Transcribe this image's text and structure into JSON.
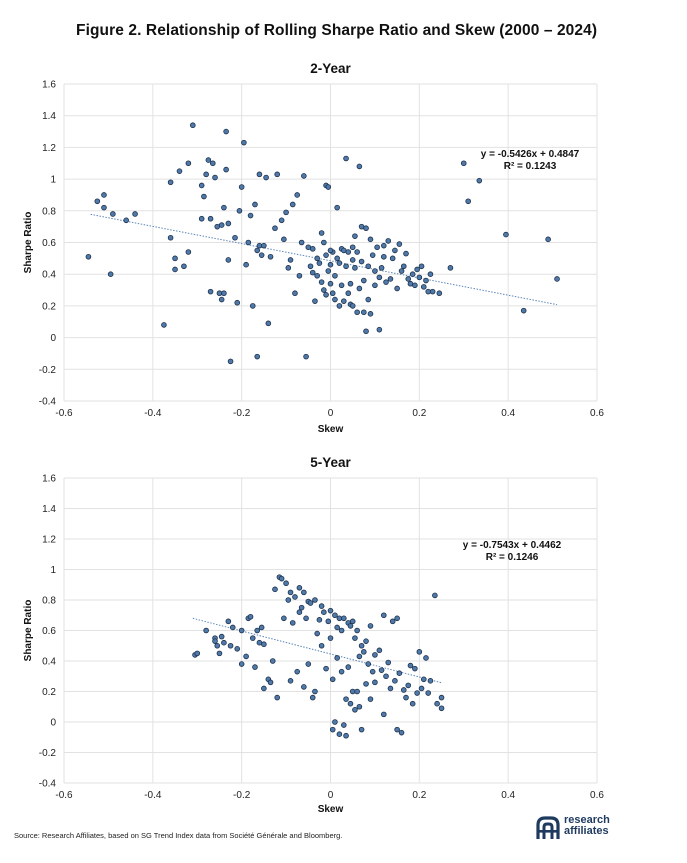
{
  "figure_title": "Figure 2. Relationship of Rolling Sharpe Ratio and Skew (2000 – 2024)",
  "source": "Source: Research Affiliates, based on SG Trend Index data from Société Générale and Bloomberg.",
  "logo": {
    "line1": "research",
    "line2": "affiliates",
    "mark": "research-affiliates-logo-mark"
  },
  "colors": {
    "point_fill": "#4f79a8",
    "point_stroke": "#1c2f4a",
    "trend": "#5b86b8",
    "grid": "#e2e2e2"
  },
  "chart_data": [
    {
      "type": "scatter",
      "title": "2-Year",
      "xlabel": "Skew",
      "ylabel": "Sharpe Ratio",
      "xlim": [
        -0.6,
        0.6
      ],
      "ylim": [
        -0.4,
        1.6
      ],
      "xticks": [
        "-0.6",
        "-0.4",
        "-0.2",
        "0",
        "0.2",
        "0.4",
        "0.6"
      ],
      "yticks": [
        "-0.4",
        "-0.2",
        "0",
        "0.2",
        "0.4",
        "0.6",
        "0.8",
        "1",
        "1.2",
        "1.4",
        "1.6"
      ],
      "grid": true,
      "trendline": {
        "slope": -0.5426,
        "intercept": 0.4847,
        "x_range": [
          -0.54,
          0.51
        ]
      },
      "equation": "y = -0.5426x + 0.4847",
      "r_squared": "R² = 0.1243",
      "points": [
        [
          -0.545,
          0.51
        ],
        [
          -0.525,
          0.86
        ],
        [
          -0.51,
          0.9
        ],
        [
          -0.51,
          0.82
        ],
        [
          -0.49,
          0.78
        ],
        [
          -0.495,
          0.4
        ],
        [
          -0.46,
          0.74
        ],
        [
          -0.44,
          0.78
        ],
        [
          -0.375,
          0.08
        ],
        [
          -0.36,
          0.98
        ],
        [
          -0.36,
          0.63
        ],
        [
          -0.35,
          0.5
        ],
        [
          -0.35,
          0.43
        ],
        [
          -0.34,
          1.05
        ],
        [
          -0.33,
          0.45
        ],
        [
          -0.32,
          1.1
        ],
        [
          -0.32,
          0.54
        ],
        [
          -0.31,
          1.34
        ],
        [
          -0.29,
          0.96
        ],
        [
          -0.29,
          0.75
        ],
        [
          -0.285,
          0.89
        ],
        [
          -0.28,
          1.03
        ],
        [
          -0.275,
          1.12
        ],
        [
          -0.27,
          0.75
        ],
        [
          -0.27,
          0.29
        ],
        [
          -0.265,
          1.1
        ],
        [
          -0.26,
          1.01
        ],
        [
          -0.255,
          0.7
        ],
        [
          -0.25,
          0.28
        ],
        [
          -0.245,
          0.71
        ],
        [
          -0.245,
          0.24
        ],
        [
          -0.24,
          0.28
        ],
        [
          -0.24,
          0.82
        ],
        [
          -0.235,
          1.3
        ],
        [
          -0.235,
          1.06
        ],
        [
          -0.23,
          0.49
        ],
        [
          -0.23,
          0.72
        ],
        [
          -0.225,
          -0.15
        ],
        [
          -0.215,
          0.63
        ],
        [
          -0.21,
          0.22
        ],
        [
          -0.205,
          0.8
        ],
        [
          -0.2,
          0.95
        ],
        [
          -0.195,
          1.23
        ],
        [
          -0.19,
          0.46
        ],
        [
          -0.185,
          0.6
        ],
        [
          -0.18,
          0.77
        ],
        [
          -0.175,
          0.2
        ],
        [
          -0.17,
          0.84
        ],
        [
          -0.165,
          0.55
        ],
        [
          -0.165,
          -0.12
        ],
        [
          -0.16,
          1.03
        ],
        [
          -0.16,
          0.58
        ],
        [
          -0.155,
          0.52
        ],
        [
          -0.15,
          0.58
        ],
        [
          -0.145,
          1.01
        ],
        [
          -0.14,
          0.09
        ],
        [
          -0.135,
          0.51
        ],
        [
          -0.125,
          0.69
        ],
        [
          -0.12,
          1.03
        ],
        [
          -0.11,
          0.74
        ],
        [
          -0.105,
          0.62
        ],
        [
          -0.1,
          0.79
        ],
        [
          -0.095,
          0.44
        ],
        [
          -0.09,
          0.49
        ],
        [
          -0.085,
          0.84
        ],
        [
          -0.08,
          0.28
        ],
        [
          -0.075,
          0.9
        ],
        [
          -0.07,
          0.39
        ],
        [
          -0.065,
          0.6
        ],
        [
          -0.06,
          1.02
        ],
        [
          -0.055,
          -0.12
        ],
        [
          -0.05,
          0.57
        ],
        [
          -0.045,
          0.45
        ],
        [
          -0.04,
          0.56
        ],
        [
          -0.04,
          0.41
        ],
        [
          -0.035,
          0.23
        ],
        [
          -0.03,
          0.5
        ],
        [
          -0.03,
          0.39
        ],
        [
          -0.025,
          0.47
        ],
        [
          -0.02,
          0.66
        ],
        [
          -0.02,
          0.35
        ],
        [
          -0.015,
          0.6
        ],
        [
          -0.015,
          0.3
        ],
        [
          -0.01,
          0.96
        ],
        [
          -0.01,
          0.52
        ],
        [
          -0.01,
          0.27
        ],
        [
          -0.005,
          0.95
        ],
        [
          -0.005,
          0.42
        ],
        [
          0.0,
          0.34
        ],
        [
          0.0,
          0.46
        ],
        [
          0.005,
          0.28
        ],
        [
          0.005,
          0.54
        ],
        [
          0.01,
          0.39
        ],
        [
          0.01,
          0.24
        ],
        [
          0.015,
          0.5
        ],
        [
          0.015,
          0.82
        ],
        [
          0.02,
          0.47
        ],
        [
          0.02,
          0.2
        ],
        [
          0.025,
          0.33
        ],
        [
          0.025,
          0.56
        ],
        [
          0.03,
          0.55
        ],
        [
          0.03,
          0.23
        ],
        [
          0.035,
          0.45
        ],
        [
          0.035,
          1.13
        ],
        [
          0.04,
          0.28
        ],
        [
          0.04,
          0.54
        ],
        [
          0.045,
          0.21
        ],
        [
          0.045,
          0.34
        ],
        [
          0.05,
          0.49
        ],
        [
          0.05,
          0.2
        ],
        [
          0.055,
          0.44
        ],
        [
          0.055,
          0.64
        ],
        [
          0.06,
          0.54
        ],
        [
          0.06,
          0.16
        ],
        [
          0.065,
          0.31
        ],
        [
          0.065,
          1.08
        ],
        [
          0.07,
          0.48
        ],
        [
          0.07,
          0.7
        ],
        [
          0.075,
          0.16
        ],
        [
          0.075,
          0.36
        ],
        [
          0.08,
          0.69
        ],
        [
          0.08,
          0.04
        ],
        [
          0.085,
          0.45
        ],
        [
          0.085,
          0.24
        ],
        [
          0.09,
          0.62
        ],
        [
          0.09,
          0.15
        ],
        [
          0.095,
          0.52
        ],
        [
          0.1,
          0.42
        ],
        [
          0.1,
          0.33
        ],
        [
          0.105,
          0.57
        ],
        [
          0.11,
          0.38
        ],
        [
          0.115,
          0.44
        ],
        [
          0.12,
          0.51
        ],
        [
          0.12,
          0.58
        ],
        [
          0.125,
          0.35
        ],
        [
          0.13,
          0.61
        ],
        [
          0.135,
          0.37
        ],
        [
          0.14,
          0.5
        ],
        [
          0.145,
          0.55
        ],
        [
          0.15,
          0.31
        ],
        [
          0.155,
          0.59
        ],
        [
          0.16,
          0.42
        ],
        [
          0.165,
          0.45
        ],
        [
          0.17,
          0.53
        ],
        [
          0.175,
          0.37
        ],
        [
          0.18,
          0.34
        ],
        [
          0.185,
          0.4
        ],
        [
          0.19,
          0.33
        ],
        [
          0.195,
          0.43
        ],
        [
          0.2,
          0.38
        ],
        [
          0.205,
          0.45
        ],
        [
          0.21,
          0.32
        ],
        [
          0.215,
          0.36
        ],
        [
          0.22,
          0.29
        ],
        [
          0.225,
          0.4
        ],
        [
          0.23,
          0.29
        ],
        [
          0.245,
          0.28
        ],
        [
          0.27,
          0.44
        ],
        [
          0.3,
          1.1
        ],
        [
          0.31,
          0.86
        ],
        [
          0.335,
          0.99
        ],
        [
          0.395,
          0.65
        ],
        [
          0.435,
          0.17
        ],
        [
          0.49,
          0.62
        ],
        [
          0.51,
          0.37
        ],
        [
          0.11,
          0.05
        ],
        [
          0.05,
          0.57
        ],
        [
          0.0,
          0.55
        ]
      ]
    },
    {
      "type": "scatter",
      "title": "5-Year",
      "xlabel": "Skew",
      "ylabel": "Sharpe Ratio",
      "xlim": [
        -0.6,
        0.6
      ],
      "ylim": [
        -0.4,
        1.6
      ],
      "xticks": [
        "-0.6",
        "-0.4",
        "-0.2",
        "0",
        "0.2",
        "0.4",
        "0.6"
      ],
      "yticks": [
        "-0.4",
        "-0.2",
        "0",
        "0.2",
        "0.4",
        "0.6",
        "0.8",
        "1",
        "1.2",
        "1.4",
        "1.6"
      ],
      "grid": true,
      "trendline": {
        "slope": -0.7543,
        "intercept": 0.4462,
        "x_range": [
          -0.31,
          0.25
        ]
      },
      "equation": "y = -0.7543x + 0.4462",
      "r_squared": "R² = 0.1246",
      "points": [
        [
          -0.305,
          0.44
        ],
        [
          -0.3,
          0.45
        ],
        [
          -0.28,
          0.6
        ],
        [
          -0.26,
          0.55
        ],
        [
          -0.255,
          0.5
        ],
        [
          -0.25,
          0.45
        ],
        [
          -0.245,
          0.56
        ],
        [
          -0.24,
          0.52
        ],
        [
          -0.23,
          0.66
        ],
        [
          -0.225,
          0.5
        ],
        [
          -0.22,
          0.62
        ],
        [
          -0.21,
          0.48
        ],
        [
          -0.2,
          0.6
        ],
        [
          -0.2,
          0.38
        ],
        [
          -0.19,
          0.43
        ],
        [
          -0.185,
          0.68
        ],
        [
          -0.18,
          0.69
        ],
        [
          -0.175,
          0.55
        ],
        [
          -0.17,
          0.36
        ],
        [
          -0.165,
          0.6
        ],
        [
          -0.16,
          0.52
        ],
        [
          -0.155,
          0.62
        ],
        [
          -0.15,
          0.51
        ],
        [
          -0.14,
          0.28
        ],
        [
          -0.135,
          0.26
        ],
        [
          -0.13,
          0.4
        ],
        [
          -0.125,
          0.87
        ],
        [
          -0.12,
          0.16
        ],
        [
          -0.115,
          0.95
        ],
        [
          -0.11,
          0.94
        ],
        [
          -0.105,
          0.68
        ],
        [
          -0.1,
          0.91
        ],
        [
          -0.095,
          0.8
        ],
        [
          -0.09,
          0.85
        ],
        [
          -0.09,
          0.27
        ],
        [
          -0.085,
          0.65
        ],
        [
          -0.08,
          0.82
        ],
        [
          -0.075,
          0.33
        ],
        [
          -0.07,
          0.88
        ],
        [
          -0.07,
          0.72
        ],
        [
          -0.065,
          0.75
        ],
        [
          -0.06,
          0.85
        ],
        [
          -0.06,
          0.23
        ],
        [
          -0.055,
          0.68
        ],
        [
          -0.05,
          0.79
        ],
        [
          -0.05,
          0.38
        ],
        [
          -0.045,
          0.78
        ],
        [
          -0.04,
          0.16
        ],
        [
          -0.035,
          0.8
        ],
        [
          -0.035,
          0.2
        ],
        [
          -0.03,
          0.58
        ],
        [
          -0.025,
          0.67
        ],
        [
          -0.02,
          0.5
        ],
        [
          -0.02,
          0.76
        ],
        [
          -0.015,
          0.72
        ],
        [
          -0.01,
          0.35
        ],
        [
          -0.005,
          0.66
        ],
        [
          0.0,
          0.73
        ],
        [
          0.0,
          0.55
        ],
        [
          0.005,
          0.28
        ],
        [
          0.005,
          -0.05
        ],
        [
          0.01,
          0.7
        ],
        [
          0.01,
          0.0
        ],
        [
          0.015,
          0.62
        ],
        [
          0.015,
          0.42
        ],
        [
          0.02,
          0.68
        ],
        [
          0.02,
          -0.08
        ],
        [
          0.025,
          0.6
        ],
        [
          0.025,
          0.33
        ],
        [
          0.03,
          0.68
        ],
        [
          0.03,
          -0.02
        ],
        [
          0.035,
          0.15
        ],
        [
          0.035,
          -0.09
        ],
        [
          0.04,
          0.65
        ],
        [
          0.04,
          0.36
        ],
        [
          0.045,
          0.63
        ],
        [
          0.045,
          0.12
        ],
        [
          0.05,
          0.66
        ],
        [
          0.05,
          0.2
        ],
        [
          0.055,
          0.55
        ],
        [
          0.055,
          0.08
        ],
        [
          0.06,
          0.6
        ],
        [
          0.06,
          0.2
        ],
        [
          0.065,
          0.43
        ],
        [
          0.065,
          0.1
        ],
        [
          0.07,
          0.5
        ],
        [
          0.07,
          -0.05
        ],
        [
          0.075,
          0.46
        ],
        [
          0.08,
          0.53
        ],
        [
          0.08,
          0.25
        ],
        [
          0.085,
          0.38
        ],
        [
          0.09,
          0.63
        ],
        [
          0.09,
          0.15
        ],
        [
          0.095,
          0.33
        ],
        [
          0.1,
          0.44
        ],
        [
          0.1,
          0.26
        ],
        [
          0.11,
          0.47
        ],
        [
          0.115,
          0.34
        ],
        [
          0.12,
          0.7
        ],
        [
          0.12,
          0.05
        ],
        [
          0.125,
          0.3
        ],
        [
          0.13,
          0.39
        ],
        [
          0.135,
          0.22
        ],
        [
          0.14,
          0.66
        ],
        [
          0.145,
          0.27
        ],
        [
          0.15,
          0.68
        ],
        [
          0.15,
          -0.05
        ],
        [
          0.155,
          0.32
        ],
        [
          0.16,
          -0.07
        ],
        [
          0.165,
          0.21
        ],
        [
          0.17,
          0.16
        ],
        [
          0.175,
          0.24
        ],
        [
          0.18,
          0.37
        ],
        [
          0.185,
          0.12
        ],
        [
          0.19,
          0.35
        ],
        [
          0.195,
          0.19
        ],
        [
          0.2,
          0.46
        ],
        [
          0.205,
          0.22
        ],
        [
          0.21,
          0.28
        ],
        [
          0.215,
          0.42
        ],
        [
          0.22,
          0.19
        ],
        [
          0.225,
          0.27
        ],
        [
          0.235,
          0.83
        ],
        [
          0.24,
          0.12
        ],
        [
          0.25,
          0.09
        ],
        [
          0.25,
          0.16
        ],
        [
          -0.26,
          0.53
        ],
        [
          -0.15,
          0.22
        ]
      ]
    }
  ]
}
